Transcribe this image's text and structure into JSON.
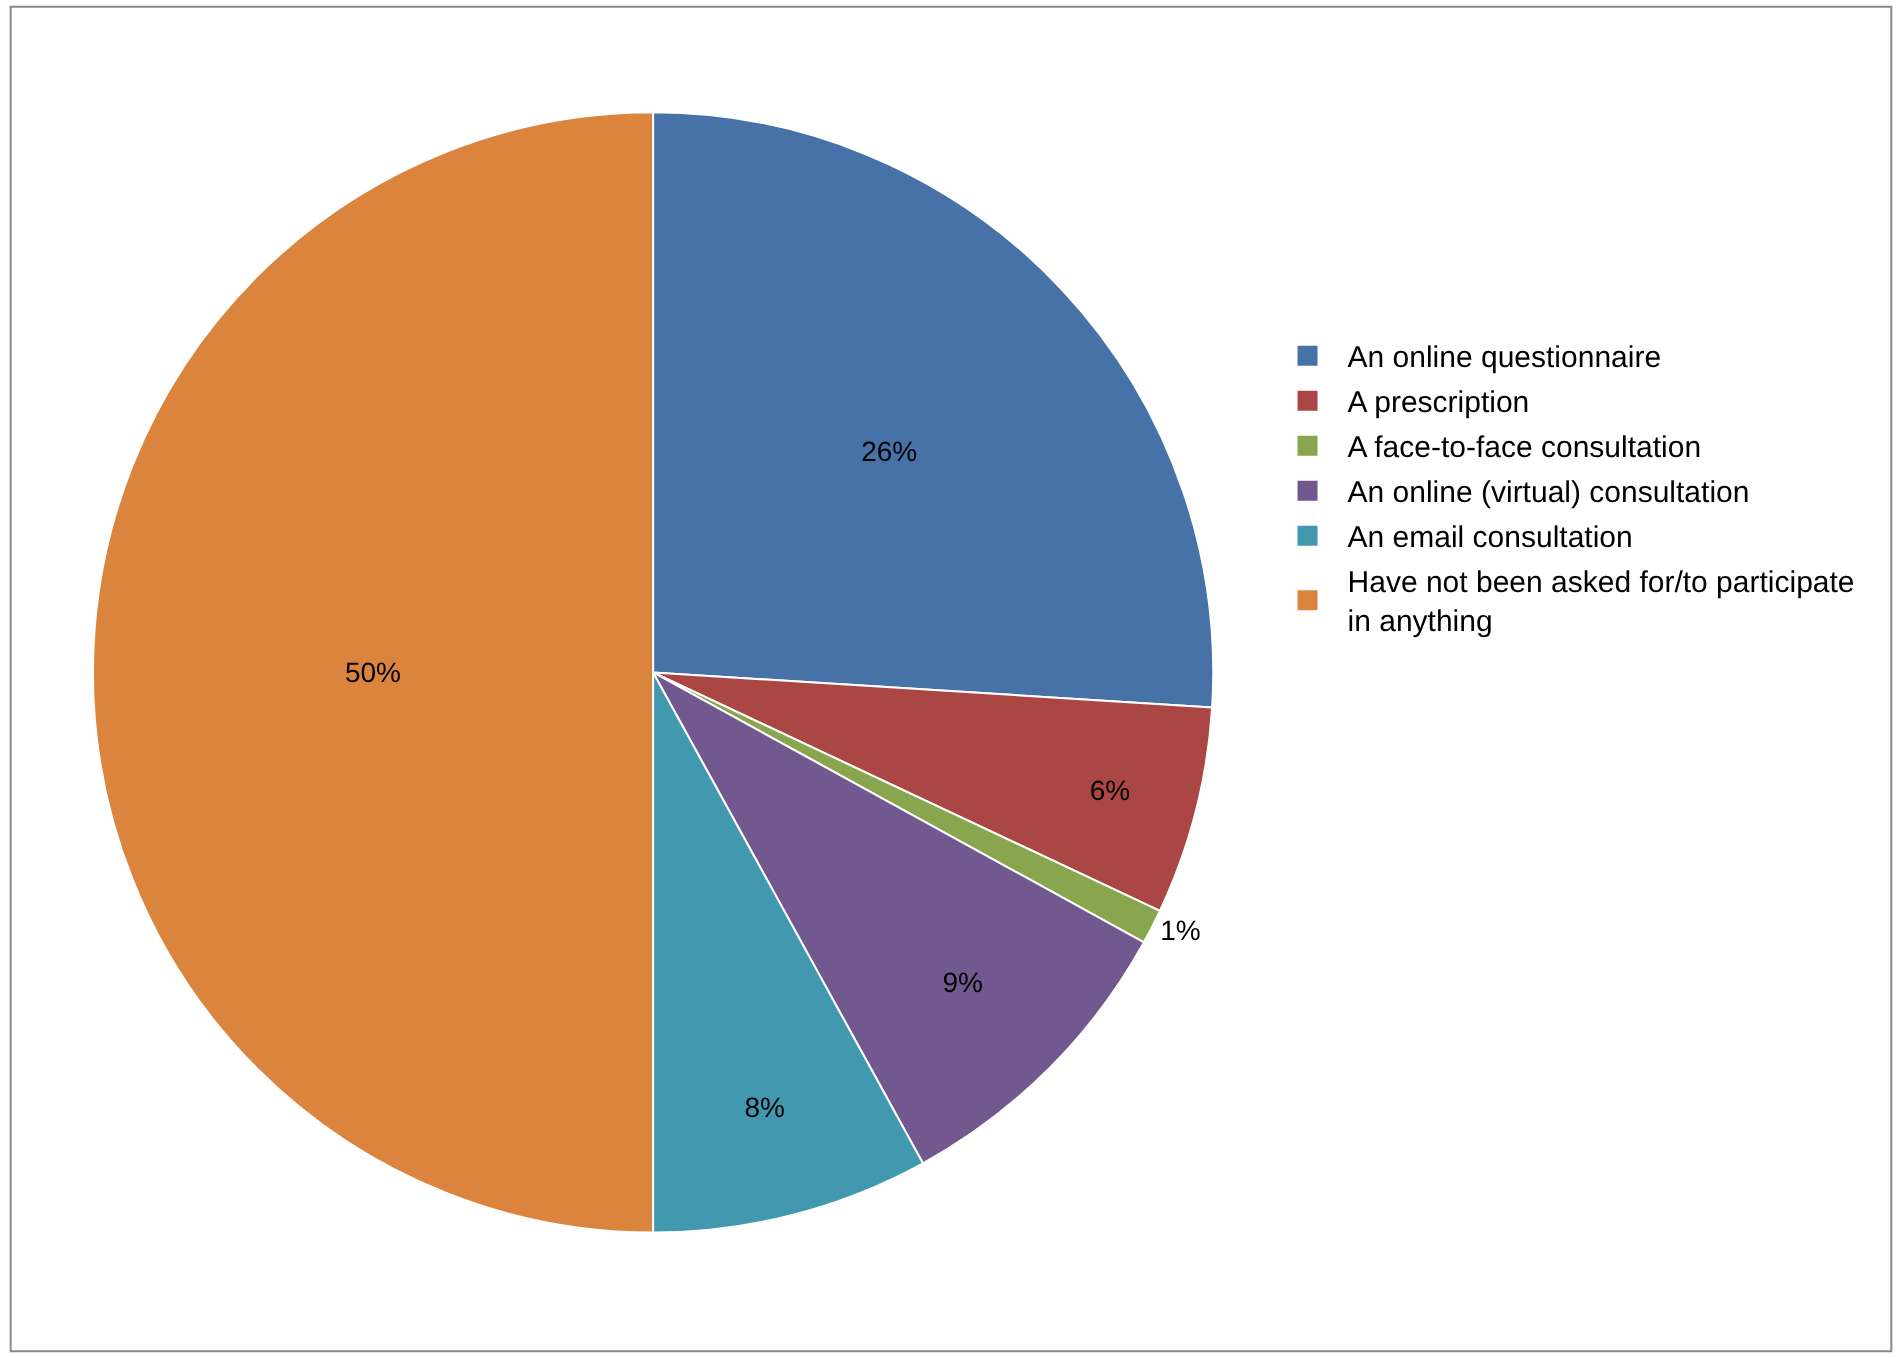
{
  "chart_data": {
    "type": "pie",
    "categories": [
      "An online questionnaire",
      "A prescription",
      "A face-to-face consultation",
      "An online (virtual) consultation",
      "An email consultation",
      "Have not been asked for/to participate in anything"
    ],
    "values": [
      26,
      6,
      1,
      9,
      8,
      50
    ],
    "colors": [
      "#4672a8",
      "#aa4643",
      "#89a54e",
      "#71588f",
      "#4198af",
      "#db843d"
    ],
    "value_labels": [
      "26%",
      "6%",
      "1%",
      "9%",
      "8%",
      "50%"
    ],
    "legend": "right"
  }
}
